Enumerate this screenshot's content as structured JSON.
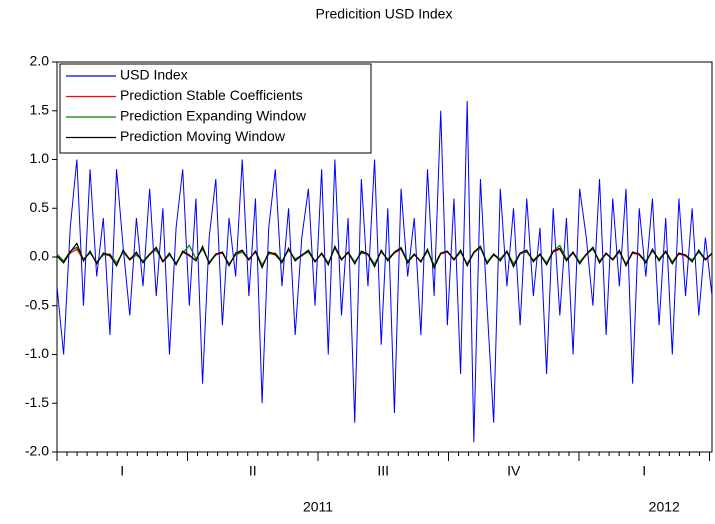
{
  "chart_data": {
    "type": "line",
    "title": "Predicition USD Index",
    "x_axis": {
      "quarters": [
        "I",
        "II",
        "III",
        "IV",
        "I"
      ],
      "years": [
        "2011",
        "2012"
      ]
    },
    "ylim": [
      -2,
      2
    ],
    "yticks": [
      {
        "value": -2,
        "label": "-2.0"
      },
      -1.5,
      {
        "value": -1,
        "label": "-1.0"
      },
      -0.5,
      {
        "value": 0,
        "label": "0.0"
      },
      0.5,
      {
        "value": 1,
        "label": "1.0"
      },
      1.5,
      {
        "value": 2,
        "label": "2.0"
      }
    ],
    "grid": false,
    "legend": "upper left",
    "series": [
      {
        "name": "USD Index",
        "color": "#0000ff",
        "values": [
          -0.3,
          -1.0,
          0.3,
          1.0,
          -0.5,
          0.9,
          -0.2,
          0.4,
          -0.8,
          0.9,
          0.1,
          -0.6,
          0.4,
          -0.3,
          0.7,
          -0.4,
          0.5,
          -1.0,
          0.3,
          0.9,
          -0.5,
          0.6,
          -1.3,
          0.2,
          0.8,
          -0.7,
          0.4,
          -0.2,
          1.0,
          -0.4,
          0.6,
          -1.5,
          0.3,
          0.9,
          -0.3,
          0.5,
          -0.8,
          0.2,
          0.7,
          -0.5,
          0.9,
          -1.0,
          1.0,
          -0.6,
          0.4,
          -1.7,
          0.8,
          -0.3,
          1.0,
          -0.9,
          0.5,
          -1.6,
          0.7,
          -0.2,
          0.4,
          -0.8,
          0.9,
          -0.4,
          1.5,
          -0.7,
          0.6,
          -1.2,
          1.6,
          -1.9,
          0.8,
          -0.5,
          -1.7,
          0.7,
          -0.3,
          0.5,
          -0.7,
          0.6,
          -0.4,
          0.3,
          -1.2,
          0.5,
          -0.6,
          0.4,
          -1.0,
          0.7,
          0.2,
          -0.5,
          0.8,
          -0.8,
          0.6,
          -0.3,
          0.7,
          -1.3,
          0.5,
          -0.2,
          0.6,
          -0.7,
          0.4,
          -1.0,
          0.6,
          -0.4,
          0.5,
          -0.6,
          0.2,
          -0.4
        ]
      },
      {
        "name": "Prediction Stable Coefficients",
        "color": "#ff0000",
        "values": [
          0.02,
          -0.05,
          0.04,
          0.08,
          -0.03,
          0.05,
          -0.06,
          0.03,
          0.01,
          -0.08,
          0.06,
          -0.02,
          0.04,
          -0.05,
          0.02,
          0.09,
          -0.04,
          0.03,
          -0.07,
          0.05,
          0.01,
          -0.03,
          0.1,
          -0.06,
          0.02,
          0.04,
          -0.08,
          0.03,
          0.06,
          -0.02,
          0.05,
          -0.1,
          0.04,
          0.02,
          -0.05,
          0.08,
          -0.03,
          0.01,
          0.06,
          -0.04,
          0.03,
          -0.07,
          0.1,
          -0.02,
          0.04,
          -0.06,
          0.05,
          0.02,
          -0.09,
          0.06,
          -0.03,
          0.04,
          0.08,
          -0.05,
          0.02,
          -0.04,
          0.07,
          -0.1,
          0.03,
          0.05,
          -0.02,
          0.06,
          -0.08,
          0.04,
          0.1,
          -0.06,
          0.02,
          -0.03,
          0.05,
          -0.09,
          0.03,
          0.06,
          -0.04,
          0.02,
          -0.07,
          0.05,
          0.08,
          -0.03,
          0.04,
          -0.06,
          0.02,
          0.09,
          -0.05,
          0.03,
          -0.02,
          0.06,
          -0.08,
          0.04,
          0.02,
          -0.05,
          0.07,
          -0.03,
          0.05,
          -0.06,
          0.03,
          0.01,
          -0.04,
          0.06,
          -0.02,
          0.03
        ]
      },
      {
        "name": "Prediction Expanding Window",
        "color": "#008000",
        "values": [
          0.03,
          -0.04,
          0.06,
          0.1,
          -0.02,
          0.04,
          -0.05,
          0.02,
          0.03,
          -0.06,
          0.05,
          -0.03,
          0.02,
          -0.04,
          0.03,
          0.07,
          -0.05,
          0.02,
          -0.06,
          0.04,
          0.12,
          -0.02,
          0.08,
          -0.05,
          0.03,
          0.05,
          -0.07,
          0.02,
          0.05,
          -0.03,
          0.06,
          -0.08,
          0.03,
          0.04,
          -0.04,
          0.07,
          -0.02,
          0.02,
          0.05,
          -0.05,
          0.04,
          -0.06,
          0.09,
          -0.03,
          0.05,
          -0.05,
          0.04,
          0.03,
          -0.07,
          0.05,
          -0.02,
          0.05,
          0.1,
          -0.04,
          0.03,
          -0.05,
          0.06,
          -0.08,
          0.04,
          0.06,
          -0.03,
          0.05,
          -0.07,
          0.05,
          0.09,
          -0.05,
          0.03,
          -0.02,
          0.06,
          -0.07,
          0.04,
          0.05,
          -0.03,
          0.03,
          -0.06,
          0.06,
          0.12,
          -0.02,
          0.05,
          -0.05,
          0.03,
          0.08,
          -0.04,
          0.04,
          -0.03,
          0.05,
          -0.07,
          0.05,
          0.03,
          -0.04,
          0.06,
          -0.02,
          0.06,
          -0.05,
          0.04,
          0.02,
          -0.03,
          0.05,
          -0.03,
          0.04
        ]
      },
      {
        "name": "Prediction Moving Window",
        "color": "#000000",
        "values": [
          0.01,
          -0.06,
          0.05,
          0.14,
          -0.04,
          0.06,
          -0.07,
          0.04,
          0.02,
          -0.09,
          0.07,
          -0.03,
          0.05,
          -0.06,
          0.03,
          0.1,
          -0.05,
          0.04,
          -0.08,
          0.06,
          0.02,
          -0.04,
          0.11,
          -0.07,
          0.03,
          0.05,
          -0.09,
          0.04,
          0.07,
          -0.03,
          0.06,
          -0.11,
          0.05,
          0.03,
          -0.06,
          0.09,
          -0.04,
          0.02,
          0.07,
          -0.05,
          0.04,
          -0.08,
          0.11,
          -0.03,
          0.05,
          -0.07,
          0.06,
          0.03,
          -0.1,
          0.07,
          -0.04,
          0.05,
          0.09,
          -0.06,
          0.03,
          -0.05,
          0.08,
          -0.11,
          0.04,
          0.06,
          -0.03,
          0.07,
          -0.09,
          0.05,
          0.11,
          -0.07,
          0.03,
          -0.04,
          0.06,
          -0.1,
          0.04,
          0.07,
          -0.05,
          0.03,
          -0.08,
          0.06,
          0.09,
          -0.04,
          0.05,
          -0.07,
          0.03,
          0.1,
          -0.06,
          0.04,
          -0.03,
          0.07,
          -0.09,
          0.05,
          0.03,
          -0.06,
          0.08,
          -0.04,
          0.06,
          -0.07,
          0.04,
          0.02,
          -0.05,
          0.07,
          -0.03,
          0.04
        ]
      }
    ]
  }
}
